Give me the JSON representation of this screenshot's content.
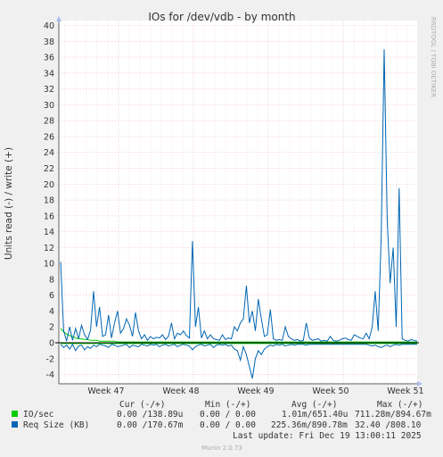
{
  "chart_data": {
    "type": "line",
    "title": "IOs for /dev/vdb - by month",
    "ylabel": "Units read (-) / write (+)",
    "side_label": "RRDTOOL / TOBI OETIKER",
    "ylim": [
      -5,
      40
    ],
    "yticks": [
      "40",
      "38",
      "36",
      "34",
      "32",
      "30",
      "28",
      "26",
      "24",
      "22",
      "20",
      "18",
      "16",
      "14",
      "12",
      "10",
      "8",
      "6",
      "4",
      "2",
      "0",
      "-2",
      "-4"
    ],
    "xticks": [
      "Week 47",
      "Week 48",
      "Week 49",
      "Week 50",
      "Week 51"
    ],
    "grid": true,
    "series": [
      {
        "name": "IO/sec",
        "color": "#00cc00",
        "write": [
          1.8,
          1.4,
          1.1,
          0.9,
          0.8,
          0.6,
          0.5,
          0.5,
          0.4,
          0.4,
          0.3,
          0.3,
          0.3,
          0.2,
          0.2,
          0.2,
          0.2,
          0.2,
          0.2,
          0.1,
          0.1,
          0.1,
          0.1,
          0.1,
          0.1,
          0.1,
          0.1,
          0.1,
          0.1,
          0.1,
          0.1,
          0.1,
          0.1,
          0.1,
          0.1,
          0.1,
          0.1,
          0.1,
          0.1,
          0.1,
          0.1,
          0.1,
          0.1,
          0.1,
          0.1,
          0.1,
          0.1,
          0.1,
          0.1,
          0.1,
          0.1,
          0.1,
          0.1,
          0.1,
          0.1,
          0.1,
          0.1,
          0.1,
          0.1,
          0.1,
          0.1,
          0.1,
          0.1,
          0.1,
          0.1,
          0.1,
          0.1,
          0.1,
          0.1,
          0.1,
          0.1,
          0.1,
          0.1,
          0.1,
          0.1,
          0.1,
          0.1,
          0.1,
          0.1,
          0.1,
          0.1,
          0.1,
          0.1,
          0.1,
          0.1,
          0.1,
          0.1,
          0.1,
          0.1,
          0.1,
          0.1,
          0.1,
          0.1,
          0.1,
          0.1,
          0.1,
          0.1,
          0.1,
          0.1,
          0.1,
          0.1,
          0.1,
          0.1,
          0.1,
          0.1,
          0.1,
          0.1,
          0.1,
          0.1,
          0.1,
          0.1,
          0.1,
          0.1,
          0.1,
          0.1,
          0.1,
          0.1,
          0.1,
          0.1,
          0.1
        ],
        "read": [
          -0.1,
          -0.1,
          -0.1,
          -0.1,
          -0.1,
          -0.1,
          -0.1,
          -0.1,
          -0.1,
          -0.1,
          -0.1,
          -0.1,
          -0.1,
          -0.1,
          -0.1,
          -0.1,
          -0.1,
          -0.1,
          -0.1,
          -0.1,
          -0.1,
          -0.1,
          -0.1,
          -0.1,
          -0.1,
          -0.1,
          -0.1,
          -0.1,
          -0.1,
          -0.1,
          -0.1,
          -0.1,
          -0.1,
          -0.1,
          -0.1,
          -0.1,
          -0.1,
          -0.1,
          -0.1,
          -0.1,
          -0.1,
          -0.1,
          -0.1,
          -0.1,
          -0.1,
          -0.1,
          -0.1,
          -0.1,
          -0.1,
          -0.1,
          -0.1,
          -0.1,
          -0.1,
          -0.1,
          -0.1,
          -0.1,
          -0.1,
          -0.1,
          -0.1,
          -0.1,
          -0.1,
          -0.1,
          -0.1,
          -0.1,
          -0.1,
          -0.1,
          -0.1,
          -0.1,
          -0.1,
          -0.1,
          -0.1,
          -0.1,
          -0.1,
          -0.1,
          -0.1,
          -0.1,
          -0.1,
          -0.1,
          -0.1,
          -0.1,
          -0.1,
          -0.1,
          -0.1,
          -0.1,
          -0.1,
          -0.1,
          -0.1,
          -0.1,
          -0.1,
          -0.1,
          -0.1,
          -0.1,
          -0.1,
          -0.1,
          -0.1,
          -0.1,
          -0.1,
          -0.1,
          -0.1,
          -0.1,
          -0.1,
          -0.1,
          -0.1,
          -0.1,
          -0.1,
          -0.1,
          -0.1,
          -0.1,
          -0.1,
          -0.1,
          -0.1,
          -0.1,
          -0.1,
          -0.1,
          -0.1,
          -0.1,
          -0.1,
          -0.1,
          -0.1,
          -0.1
        ]
      },
      {
        "name": "Req Size (KB)",
        "color": "#0066b3",
        "write": [
          10.2,
          1.5,
          0.2,
          2.0,
          0.3,
          1.8,
          0.5,
          2.2,
          1.0,
          0.4,
          1.6,
          6.5,
          2.0,
          4.5,
          0.8,
          1.0,
          3.5,
          0.6,
          2.5,
          4.0,
          1.2,
          1.8,
          3.0,
          2.2,
          0.8,
          3.8,
          1.5,
          0.5,
          1.0,
          0.3,
          0.8,
          0.5,
          0.7,
          0.6,
          1.0,
          0.4,
          0.8,
          2.5,
          0.5,
          1.2,
          1.0,
          1.5,
          0.9,
          0.6,
          12.8,
          2.0,
          4.5,
          0.6,
          1.5,
          0.5,
          1.0,
          0.5,
          0.4,
          0.3,
          1.0,
          0.4,
          0.6,
          0.5,
          2.0,
          1.5,
          2.5,
          3.0,
          7.2,
          2.5,
          4.0,
          1.5,
          5.5,
          3.0,
          0.8,
          1.0,
          4.2,
          0.5,
          0.3,
          0.4,
          0.3,
          2.0,
          0.8,
          0.5,
          0.3,
          0.4,
          0.2,
          0.3,
          2.5,
          0.6,
          0.3,
          0.4,
          0.5,
          0.2,
          0.3,
          0.2,
          0.8,
          0.3,
          0.2,
          0.3,
          0.5,
          0.6,
          0.4,
          0.3,
          1.0,
          0.8,
          0.6,
          0.5,
          1.2,
          0.5,
          2.0,
          6.5,
          1.5,
          13.5,
          37.0,
          15.5,
          7.5,
          12.0,
          2.0,
          19.5,
          0.5,
          0.3,
          0.2,
          0.4,
          0.3,
          0.2
        ],
        "read": [
          -0.2,
          -0.6,
          -0.3,
          -0.8,
          -0.2,
          -1.0,
          -0.4,
          -0.3,
          -0.9,
          -0.5,
          -0.7,
          -0.3,
          -0.5,
          -0.2,
          -0.3,
          -0.4,
          -0.6,
          -0.2,
          -0.3,
          -0.5,
          -0.4,
          -0.3,
          -0.2,
          -0.6,
          -0.3,
          -0.4,
          -0.5,
          -0.2,
          -0.3,
          -0.4,
          -0.2,
          -0.3,
          -0.2,
          -0.5,
          -0.3,
          -0.2,
          -0.4,
          -0.3,
          -0.2,
          -0.5,
          -0.3,
          -0.2,
          -0.3,
          -0.4,
          -0.9,
          -0.5,
          -0.3,
          -0.2,
          -0.4,
          -0.3,
          -0.2,
          -0.6,
          -0.3,
          -0.2,
          -0.3,
          -0.2,
          -0.4,
          -0.3,
          -0.8,
          -1.0,
          -2.2,
          -0.5,
          -1.5,
          -3.0,
          -4.5,
          -2.0,
          -1.0,
          -1.5,
          -0.8,
          -0.5,
          -0.3,
          -0.4,
          -0.2,
          -0.3,
          -0.2,
          -0.4,
          -0.3,
          -0.2,
          -0.3,
          -0.2,
          -0.2,
          -0.2,
          -0.3,
          -0.2,
          -0.2,
          -0.2,
          -0.2,
          -0.2,
          -0.2,
          -0.2,
          -0.2,
          -0.2,
          -0.2,
          -0.2,
          -0.2,
          -0.2,
          -0.2,
          -0.2,
          -0.2,
          -0.2,
          -0.2,
          -0.2,
          -0.2,
          -0.3,
          -0.4,
          -0.3,
          -0.5,
          -0.6,
          -0.4,
          -0.3,
          -0.5,
          -0.3,
          -0.2,
          -0.3,
          -0.2,
          -0.2,
          -0.2,
          -0.2,
          -0.2,
          -0.2
        ]
      }
    ]
  },
  "legend": {
    "headers": [
      "Cur (-/+)",
      "Min (-/+)",
      "Avg (-/+)",
      "Max (-/+)"
    ],
    "rows": [
      {
        "name": "IO/sec",
        "color": "#00cc00",
        "cur": "0.00 /138.89u",
        "min": "0.00 / 0.00",
        "avg": "1.01m/651.40u",
        "max": "711.28m/894.67m"
      },
      {
        "name": "Req Size (KB)",
        "color": "#0066b3",
        "cur": "0.00 /170.67m",
        "min": "0.00 / 0.00",
        "avg": "225.36m/890.78m",
        "max": "32.40 /808.10"
      }
    ]
  },
  "last_update": "Last update: Fri Dec 19 13:00:11 2025",
  "footer": "Munin 2.0.73"
}
